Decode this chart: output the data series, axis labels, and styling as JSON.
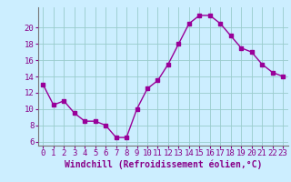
{
  "x": [
    0,
    1,
    2,
    3,
    4,
    5,
    6,
    7,
    8,
    9,
    10,
    11,
    12,
    13,
    14,
    15,
    16,
    17,
    18,
    19,
    20,
    21,
    22,
    23
  ],
  "y": [
    13,
    10.5,
    11,
    9.5,
    8.5,
    8.5,
    8,
    6.5,
    6.5,
    10,
    12.5,
    13.5,
    15.5,
    18,
    20.5,
    21.5,
    21.5,
    20.5,
    19,
    17.5,
    17,
    15.5,
    14.5,
    14
  ],
  "line_color": "#990099",
  "marker": "s",
  "marker_size": 2.5,
  "xlabel": "Windchill (Refroidissement éolien,°C)",
  "xlabel_fontsize": 7,
  "xticks": [
    0,
    1,
    2,
    3,
    4,
    5,
    6,
    7,
    8,
    9,
    10,
    11,
    12,
    13,
    14,
    15,
    16,
    17,
    18,
    19,
    20,
    21,
    22,
    23
  ],
  "yticks": [
    6,
    8,
    10,
    12,
    14,
    16,
    18,
    20
  ],
  "ylim": [
    5.5,
    22.5
  ],
  "xlim": [
    -0.5,
    23.5
  ],
  "background_color": "#cceeff",
  "grid_color": "#99cccc",
  "tick_color": "#880088",
  "tick_fontsize": 6.5,
  "line_width": 1.0
}
